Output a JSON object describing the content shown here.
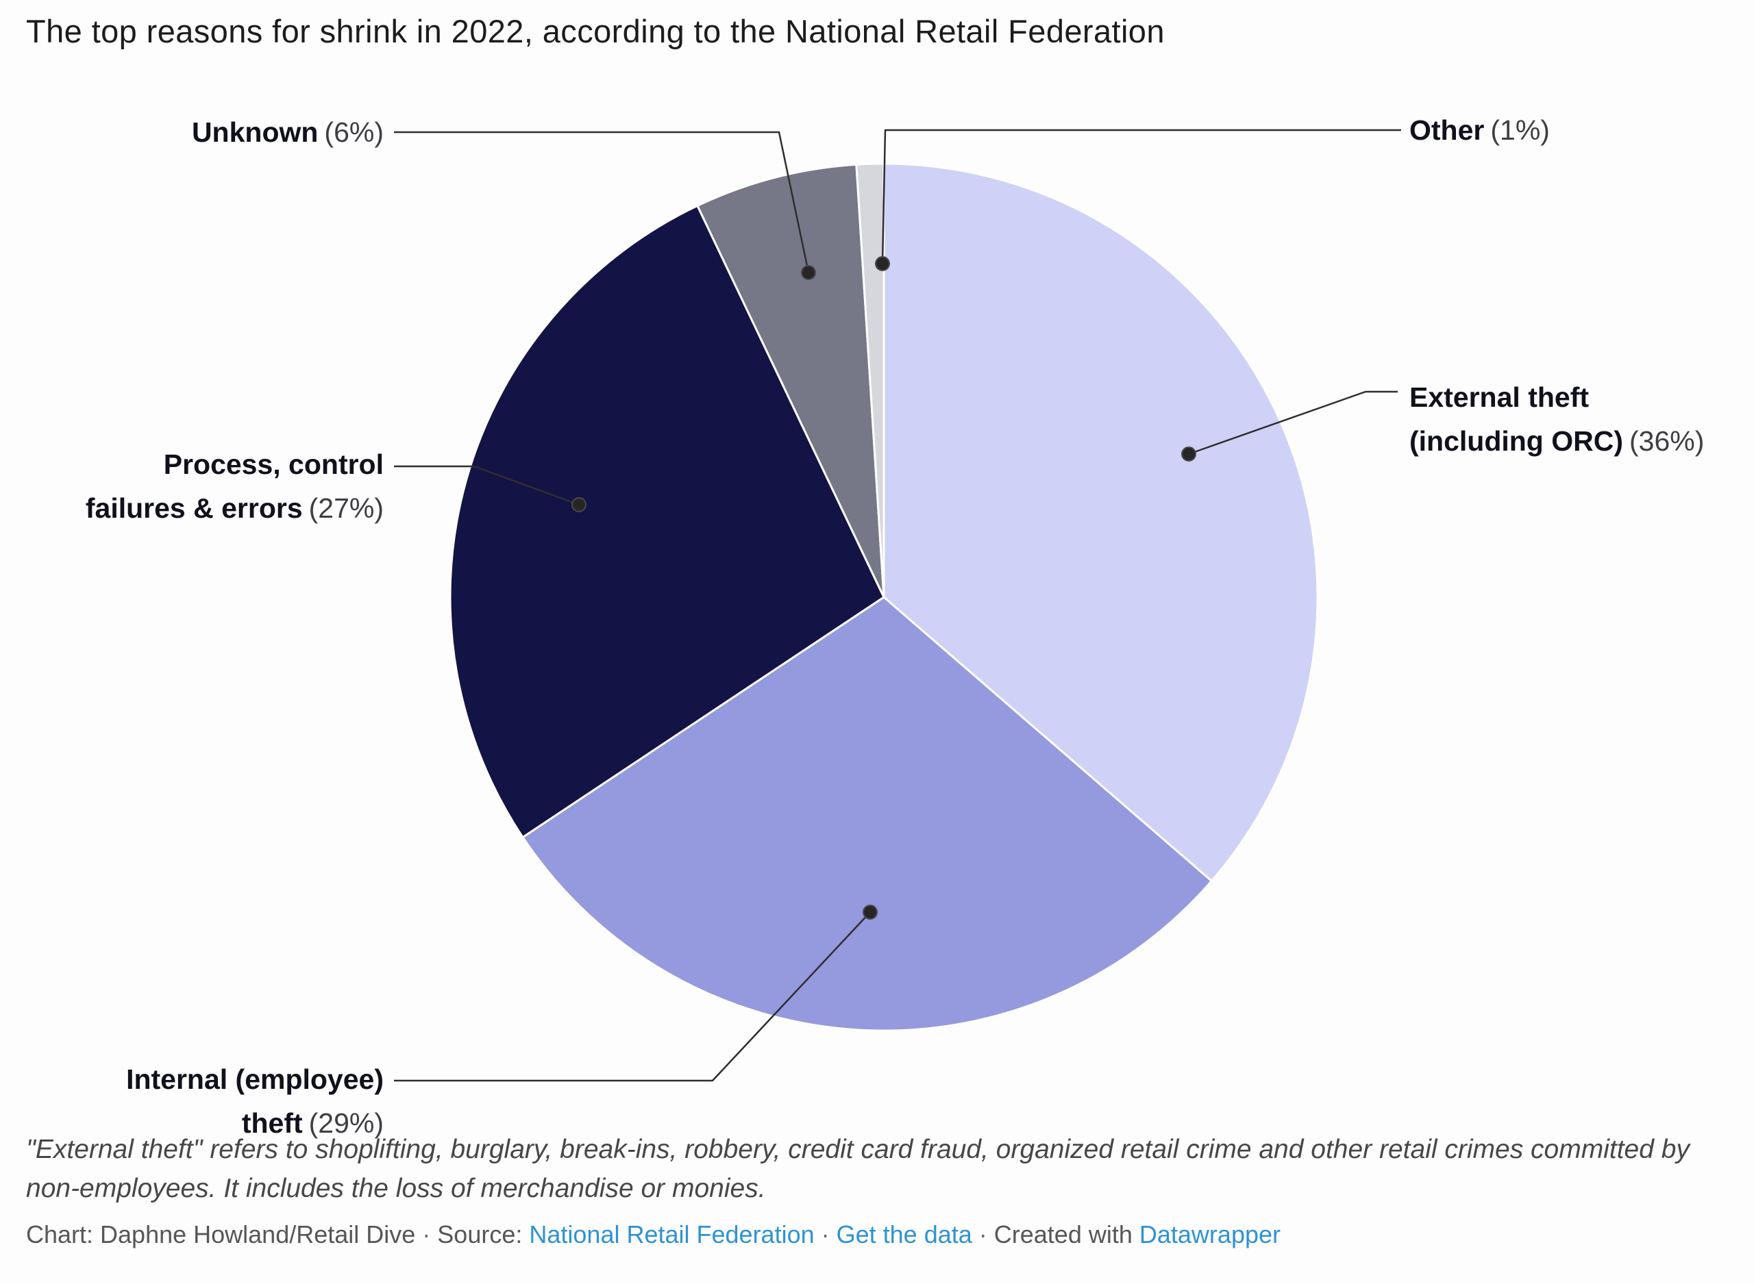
{
  "title": "The top reasons for shrink in 2022, according to the National Retail Federation",
  "chart_data": {
    "type": "pie",
    "title": "The top reasons for shrink in 2022, according to the National Retail Federation",
    "categories": [
      "External theft (including ORC)",
      "Internal (employee) theft",
      "Process, control failures & errors",
      "Unknown",
      "Other"
    ],
    "values": [
      36,
      29,
      27,
      6,
      1
    ],
    "unit": "%",
    "colors": [
      "#cfd1f6",
      "#9599dd",
      "#141345",
      "#767887",
      "#d6d7dd"
    ],
    "start_angle": "12 o'clock",
    "direction": "clockwise",
    "legend_position": "outside labels with leader lines",
    "slice_border_color": "#ffffff"
  },
  "annotations": {
    "unknown": {
      "bold": "Unknown",
      "pct": "(6%)"
    },
    "other": {
      "bold": "Other",
      "pct": "(1%)"
    },
    "external": {
      "line1_bold": "External theft",
      "line2_bold": "(including ORC)",
      "line2_pct": "(36%)"
    },
    "process": {
      "line1_bold": "Process, control",
      "line2_bold": "failures & errors",
      "line2_pct": "(27%)"
    },
    "internal": {
      "line1_bold": "Internal (employee)",
      "line2_bold": "theft",
      "line2_pct": "(29%)"
    }
  },
  "footnote": "\"External theft\" refers to shoplifting, burglary, break-ins, robbery, credit card fraud, organized retail crime and other retail crimes committed by non-employees. It includes the loss of merchandise or monies.",
  "footer": {
    "chart_credit": "Chart: Daphne Howland/Retail Dive",
    "separator": "·",
    "source_label": "Source:",
    "source_link": "National Retail Federation",
    "data_link": "Get the data",
    "created_with": "Created with",
    "tool_link": "Datawrapper"
  }
}
